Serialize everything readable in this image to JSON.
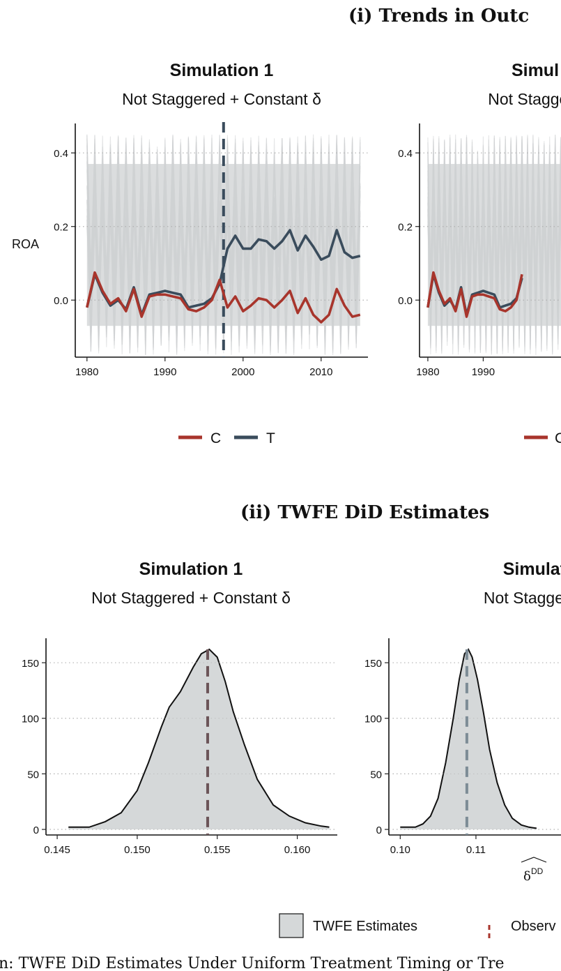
{
  "figure": {
    "panel_i_title": "(i) Trends in Outc",
    "panel_ii_title": "(ii) TWFE DiD Estimates",
    "caption": "n: TWFE DiD Estimates Under Uniform Treatment Timing or Tre"
  },
  "colors": {
    "control": "#a8352c",
    "treated": "#3a4c5c",
    "noise": "#cfd1d3",
    "density_fill": "#d5d8d9",
    "sim1_vline": "#6b5458",
    "sim2_vline": "#7d8c96",
    "grid": "#b0b0b0"
  },
  "chart_data": [
    {
      "type": "line",
      "panel": "i",
      "title": "Simulation 1",
      "subtitle": "Not Staggered + Constant δ",
      "xlabel": "",
      "ylabel": "ROA",
      "xlim": [
        1978.5,
        2016
      ],
      "ylim": [
        -0.155,
        0.48
      ],
      "xticks": [
        1980,
        1990,
        2000,
        2010
      ],
      "xtick_labels": [
        "1980",
        "1990",
        "2000",
        "2010"
      ],
      "yticks": [
        0.0,
        0.2,
        0.4
      ],
      "ytick_labels": [
        "0.0",
        "0.2",
        "0.4"
      ],
      "treatment_year": 1997.5,
      "noise_band": [
        -0.15,
        0.45
      ],
      "x": [
        1980,
        1981,
        1982,
        1983,
        1984,
        1985,
        1986,
        1987,
        1988,
        1989,
        1990,
        1991,
        1992,
        1993,
        1994,
        1995,
        1996,
        1997,
        1998,
        1999,
        2000,
        2001,
        2002,
        2003,
        2004,
        2005,
        2006,
        2007,
        2008,
        2009,
        2010,
        2011,
        2012,
        2013,
        2014,
        2015
      ],
      "series": [
        {
          "name": "C",
          "values": [
            -0.02,
            0.075,
            0.025,
            -0.01,
            0.005,
            -0.03,
            0.03,
            -0.045,
            0.01,
            0.015,
            0.015,
            0.01,
            0.005,
            -0.025,
            -0.03,
            -0.02,
            0.0,
            0.055,
            -0.02,
            0.01,
            -0.03,
            -0.015,
            0.005,
            0.0,
            -0.02,
            0.0,
            0.025,
            -0.035,
            0.005,
            -0.04,
            -0.06,
            -0.04,
            0.03,
            -0.015,
            -0.045,
            -0.04
          ]
        },
        {
          "name": "T",
          "values": [
            -0.02,
            0.07,
            0.02,
            -0.015,
            0.0,
            -0.025,
            0.035,
            -0.04,
            0.015,
            0.02,
            0.025,
            0.02,
            0.015,
            -0.02,
            -0.015,
            -0.01,
            0.005,
            0.045,
            0.14,
            0.175,
            0.14,
            0.14,
            0.165,
            0.16,
            0.14,
            0.16,
            0.19,
            0.135,
            0.175,
            0.145,
            0.11,
            0.12,
            0.19,
            0.13,
            0.115,
            0.12
          ]
        }
      ],
      "legend": {
        "position": "bottom",
        "entries": [
          "C",
          "T"
        ]
      }
    },
    {
      "type": "line",
      "panel": "i",
      "title": "Simul",
      "subtitle": "Not Staggere",
      "ylabel": "",
      "xlim": [
        1978.5,
        2016
      ],
      "ylim": [
        -0.155,
        0.48
      ],
      "xticks": [
        1980,
        1990
      ],
      "xtick_labels": [
        "1980",
        "1990"
      ],
      "yticks": [
        0.0,
        0.2,
        0.4
      ],
      "ytick_labels": [
        "0.0",
        "0.2",
        "0.4"
      ],
      "noise_band": [
        -0.15,
        0.45
      ],
      "x": [
        1980,
        1981,
        1982,
        1983,
        1984,
        1985,
        1986,
        1987,
        1988,
        1989,
        1990,
        1991,
        1992,
        1993,
        1994,
        1995,
        1996,
        1997
      ],
      "series": [
        {
          "name": "C",
          "values": [
            -0.02,
            0.075,
            0.025,
            -0.01,
            0.005,
            -0.03,
            0.03,
            -0.045,
            0.01,
            0.015,
            0.015,
            0.01,
            0.005,
            -0.025,
            -0.03,
            -0.02,
            0.0,
            0.07
          ]
        },
        {
          "name": "T",
          "values": [
            -0.02,
            0.07,
            0.02,
            -0.015,
            0.0,
            -0.025,
            0.035,
            -0.04,
            0.015,
            0.02,
            0.025,
            0.02,
            0.015,
            -0.02,
            -0.015,
            -0.01,
            0.005,
            0.06
          ]
        }
      ],
      "legend": {
        "position": "bottom",
        "entries": [
          "C"
        ]
      }
    },
    {
      "type": "area",
      "panel": "ii",
      "title": "Simulation 1",
      "subtitle": "Not Staggered + Constant δ",
      "xlim": [
        0.1443,
        0.1625
      ],
      "ylim": [
        -5,
        172
      ],
      "xticks": [
        0.145,
        0.15,
        0.155,
        0.16
      ],
      "xtick_labels": [
        "0.145",
        "0.150",
        "0.155",
        "0.160"
      ],
      "yticks": [
        0,
        50,
        100,
        150
      ],
      "ytick_labels": [
        "0",
        "50",
        "100",
        "150"
      ],
      "observed": 0.1544,
      "x": [
        0.1457,
        0.147,
        0.148,
        0.149,
        0.15,
        0.1507,
        0.1515,
        0.152,
        0.1527,
        0.1535,
        0.154,
        0.1545,
        0.155,
        0.1555,
        0.156,
        0.1567,
        0.1575,
        0.1585,
        0.1595,
        0.1605,
        0.1615,
        0.162
      ],
      "values": [
        2,
        2,
        7,
        15,
        35,
        60,
        92,
        110,
        124,
        146,
        158,
        162,
        155,
        133,
        106,
        76,
        45,
        22,
        12,
        6,
        3,
        2
      ]
    },
    {
      "type": "area",
      "panel": "ii",
      "title": "Simulatio",
      "subtitle": "Not Staggered +",
      "xlabel": "δ^DD",
      "xlim": [
        0.0985,
        0.1355
      ],
      "ylim": [
        -5,
        172
      ],
      "xticks": [
        0.1,
        0.11
      ],
      "xtick_labels": [
        "0.10",
        "0.11"
      ],
      "yticks": [
        0,
        50,
        100,
        150
      ],
      "ytick_labels": [
        "0",
        "50",
        "100",
        "150"
      ],
      "observed": 0.1088,
      "x": [
        0.1,
        0.102,
        0.103,
        0.104,
        0.105,
        0.106,
        0.107,
        0.1078,
        0.1085,
        0.109,
        0.1095,
        0.1102,
        0.111,
        0.1118,
        0.1128,
        0.1138,
        0.1148,
        0.116,
        0.117,
        0.118
      ],
      "values": [
        2,
        2,
        5,
        12,
        28,
        60,
        100,
        135,
        158,
        162,
        155,
        135,
        105,
        72,
        42,
        22,
        10,
        4,
        2,
        1
      ],
      "legend": {
        "position": "bottom",
        "entries": [
          "TWFE Estimates",
          "Observ"
        ]
      }
    }
  ]
}
